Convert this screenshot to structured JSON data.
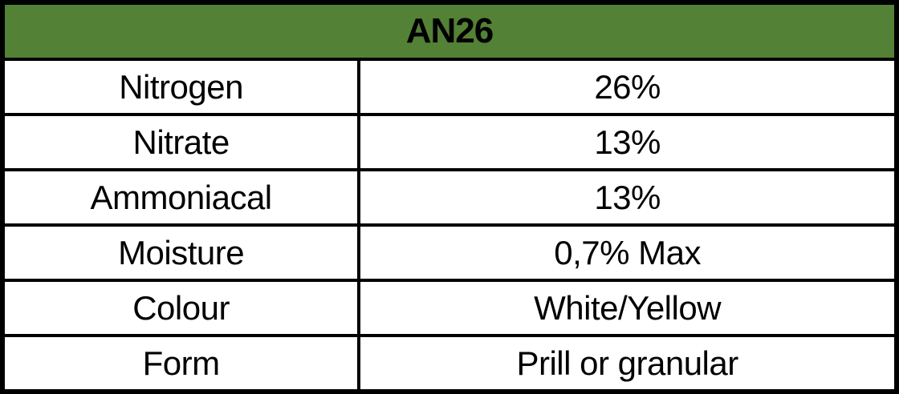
{
  "table": {
    "header": "AN26",
    "colors": {
      "header_background": "#538135",
      "border": "#000000",
      "text": "#000000",
      "cell_background": "#ffffff"
    },
    "rows": [
      {
        "label": "Nitrogen",
        "value": "26%"
      },
      {
        "label": "Nitrate",
        "value": "13%"
      },
      {
        "label": "Ammoniacal",
        "value": "13%"
      },
      {
        "label": "Moisture",
        "value": "0,7% Max"
      },
      {
        "label": "Colour",
        "value": "White/Yellow"
      },
      {
        "label": "Form",
        "value": "Prill or granular"
      }
    ]
  }
}
